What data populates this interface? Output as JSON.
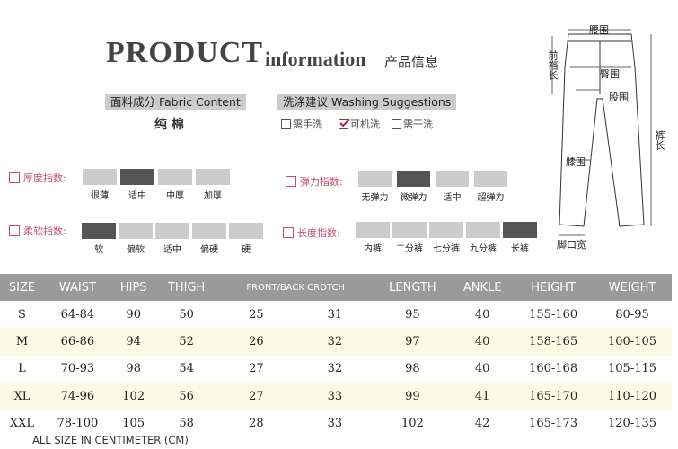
{
  "header": {
    "title": "PRODUCT",
    "subtitle": "information",
    "subtitle_cn": "产品信息"
  },
  "fabric": {
    "label": "面料成分 Fabric Content",
    "value": "纯 棉"
  },
  "washing": {
    "label": "洗涤建议 Washing Suggestions",
    "options": [
      "需手洗",
      "可机洗",
      "需干洗"
    ],
    "checked": 1
  },
  "scales": [
    {
      "label": "厚度指数:",
      "options": [
        "很薄",
        "适中",
        "中厚",
        "加厚"
      ],
      "selected": 1
    },
    {
      "label": "弹力指数:",
      "options": [
        "无弹力",
        "微弹力",
        "适中",
        "超弹力"
      ],
      "selected": 1
    },
    {
      "label": "柔软指数:",
      "options": [
        "软",
        "偏软",
        "适中",
        "偏硬",
        "硬"
      ],
      "selected": 0
    },
    {
      "label": "长度指数:",
      "options": [
        "内裤",
        "二分裤",
        "七分裤",
        "九分裤",
        "长裤"
      ],
      "selected": 4
    }
  ],
  "diagram": {
    "waist": "腰围",
    "front_rise": "前裆长",
    "hips": "臀围",
    "thigh": "股围",
    "length": "裤长",
    "knee": "膝围",
    "ankle": "脚口宽"
  },
  "table": {
    "header": [
      "SIZE",
      "WAIST",
      "HIPS",
      "THIGH",
      "FRONT/BACK CROTCH",
      "LENGTH",
      "ANKLE",
      "HEIGHT",
      "WEIGHT"
    ],
    "rows": [
      [
        "S",
        "64-84",
        90,
        50,
        25,
        31,
        95,
        40,
        "155-160",
        "80-95"
      ],
      [
        "M",
        "66-86",
        94,
        52,
        26,
        32,
        97,
        40,
        "158-165",
        "100-105"
      ],
      [
        "L",
        "70-93",
        98,
        54,
        27,
        32,
        98,
        40,
        "160-168",
        "105-115"
      ],
      [
        "XL",
        "74-96",
        102,
        56,
        27,
        33,
        99,
        41,
        "165-170",
        "110-120"
      ],
      [
        "XXL",
        "78-100",
        105,
        58,
        28,
        33,
        102,
        42,
        "165-173",
        "120-135"
      ]
    ]
  },
  "footnote": "ALL SIZE IN CENTIMETER (CM)"
}
